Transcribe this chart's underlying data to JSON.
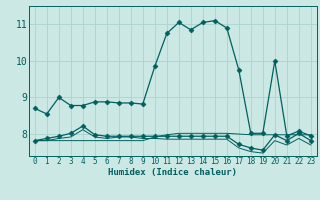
{
  "xlabel": "Humidex (Indice chaleur)",
  "background_color": "#cce8e4",
  "grid_color": "#aad4ce",
  "line_color": "#006060",
  "x_ticks": [
    0,
    1,
    2,
    3,
    4,
    5,
    6,
    7,
    8,
    9,
    10,
    11,
    12,
    13,
    14,
    15,
    16,
    17,
    18,
    19,
    20,
    21,
    22,
    23
  ],
  "y_ticks": [
    8,
    9,
    10,
    11
  ],
  "ylim": [
    7.4,
    11.5
  ],
  "xlim": [
    -0.5,
    23.5
  ],
  "series": [
    {
      "x": [
        0,
        1,
        2,
        3,
        4,
        5,
        6,
        7,
        8,
        9,
        10,
        11,
        12,
        13,
        14,
        15,
        16,
        17,
        18,
        19,
        20,
        21,
        22,
        23
      ],
      "y": [
        8.7,
        8.55,
        9.0,
        8.78,
        8.78,
        8.88,
        8.88,
        8.85,
        8.85,
        8.82,
        9.85,
        10.75,
        11.05,
        10.85,
        11.05,
        11.1,
        10.9,
        9.75,
        8.02,
        8.02,
        10.0,
        7.95,
        8.08,
        7.95
      ],
      "marker": "D",
      "markersize": 2.5,
      "linewidth": 0.9
    },
    {
      "x": [
        0,
        1,
        2,
        3,
        4,
        5,
        6,
        7,
        8,
        9,
        10,
        11,
        12,
        13,
        14,
        15,
        16,
        17,
        18,
        19,
        20,
        21,
        22,
        23
      ],
      "y": [
        7.82,
        7.88,
        7.94,
        8.02,
        8.22,
        7.98,
        7.94,
        7.94,
        7.94,
        7.94,
        7.94,
        7.94,
        7.94,
        7.94,
        7.94,
        7.94,
        7.94,
        7.72,
        7.62,
        7.56,
        7.98,
        7.82,
        8.02,
        7.82
      ],
      "marker": "D",
      "markersize": 2.5,
      "linewidth": 0.9
    },
    {
      "x": [
        0,
        1,
        2,
        3,
        4,
        5,
        6,
        7,
        8,
        9,
        10,
        11,
        12,
        13,
        14,
        15,
        16,
        17,
        18,
        19,
        20,
        21,
        22,
        23
      ],
      "y": [
        7.82,
        7.82,
        7.88,
        7.92,
        8.12,
        7.92,
        7.88,
        7.92,
        7.92,
        7.88,
        7.88,
        7.86,
        7.86,
        7.86,
        7.86,
        7.86,
        7.86,
        7.62,
        7.52,
        7.48,
        7.82,
        7.7,
        7.88,
        7.7
      ],
      "marker": null,
      "linewidth": 0.7
    },
    {
      "x": [
        0,
        1,
        2,
        3,
        4,
        5,
        6,
        7,
        8,
        9,
        10,
        11,
        12,
        13,
        14,
        15,
        16,
        17,
        18,
        19,
        20,
        21,
        22,
        23
      ],
      "y": [
        7.82,
        7.82,
        7.82,
        7.82,
        7.82,
        7.82,
        7.82,
        7.82,
        7.82,
        7.82,
        7.92,
        7.98,
        8.02,
        8.02,
        8.02,
        8.02,
        8.02,
        8.0,
        7.98,
        7.98,
        7.98,
        7.98,
        7.98,
        7.98
      ],
      "marker": null,
      "linewidth": 0.7
    }
  ]
}
